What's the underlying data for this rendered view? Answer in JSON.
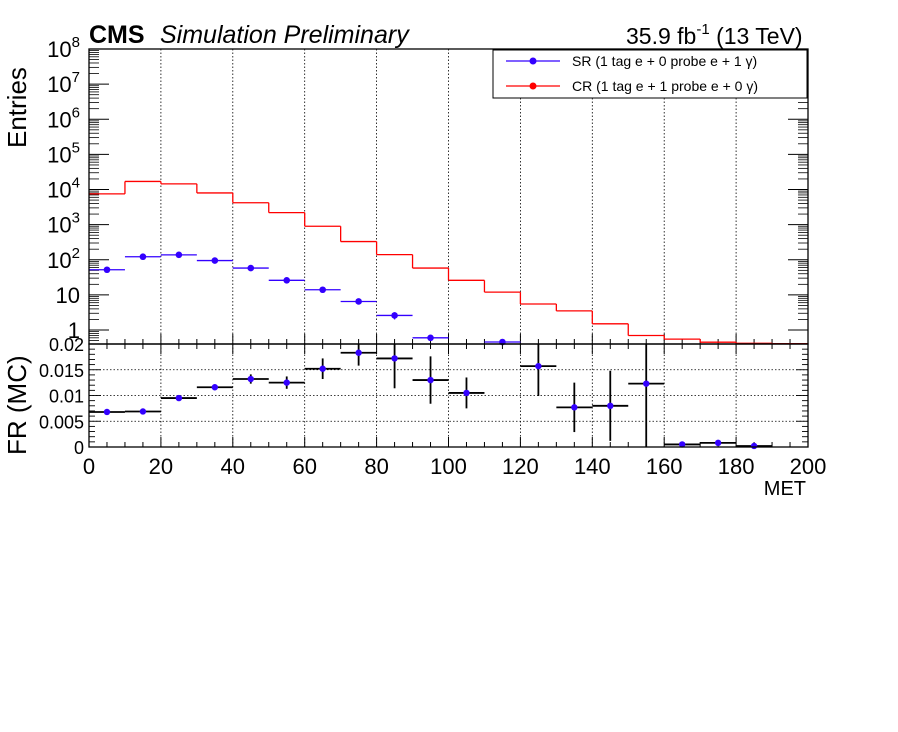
{
  "header": {
    "experiment": "CMS",
    "status": "Simulation Preliminary",
    "lumi": "35.9 fb",
    "lumi_exp": "-1",
    "energy": "(13 TeV)"
  },
  "colors": {
    "sr": "#3300ff",
    "cr": "#ff0000",
    "frame": "#000000",
    "grid": "#000000",
    "ratio_points": "#3300ff",
    "ratio_errors": "#000000"
  },
  "chart_data": [
    {
      "type": "line",
      "title": "",
      "xlabel": "",
      "ylabel": "Entries",
      "xlim": [
        0,
        200
      ],
      "ylim": [
        0.4,
        100000000
      ],
      "log_y": true,
      "grid": true,
      "legend_position": "top-right",
      "y_ticks": [
        "1",
        "10",
        "10",
        "10",
        "10",
        "10",
        "10",
        "10"
      ],
      "y_tick_exps": [
        "",
        "",
        "2",
        "3",
        "4",
        "5",
        "6",
        "7"
      ],
      "y_top_tick": "10",
      "y_top_tick_exp": "8",
      "legend": [
        {
          "label": "SR (1 tag e + 0 probe e + 1 γ)",
          "color": "#3300ff"
        },
        {
          "label": "CR (1 tag e + 1 probe e + 0 γ)",
          "color": "#ff0000"
        }
      ],
      "bin_edges": [
        0,
        10,
        20,
        30,
        40,
        50,
        60,
        70,
        80,
        90,
        100,
        110,
        120,
        130,
        140,
        150,
        160,
        170,
        180,
        190,
        200
      ],
      "series": [
        {
          "name": "SR (1 tag e + 0 probe e + 1 γ)",
          "style": "points",
          "x": [
            5,
            15,
            25,
            35,
            45,
            55,
            65,
            75,
            85,
            95,
            115
          ],
          "values": [
            52,
            122,
            138,
            95,
            58,
            26,
            14,
            6.5,
            2.6,
            0.6,
            0.45
          ],
          "y_err": [
            0,
            0,
            0,
            0,
            0,
            0,
            0,
            0.6,
            0.6,
            0.1,
            0.05
          ]
        },
        {
          "name": "CR (1 tag e + 1 probe e + 0 γ)",
          "style": "step",
          "values": [
            7500,
            17000,
            14500,
            8000,
            4200,
            2200,
            900,
            330,
            140,
            58,
            26,
            12,
            5.5,
            3.5,
            1.5,
            0.7,
            0.55,
            0.45,
            0.42,
            0.41
          ]
        }
      ]
    },
    {
      "type": "scatter",
      "title": "",
      "xlabel": "MET",
      "ylabel": "FR (MC)",
      "xlim": [
        0,
        200
      ],
      "ylim": [
        0,
        0.02
      ],
      "grid": true,
      "x_ticks": [
        "0",
        "20",
        "40",
        "60",
        "80",
        "100",
        "120",
        "140",
        "160",
        "180",
        "200"
      ],
      "y_ticks": [
        "0",
        "0.005",
        "0.01",
        "0.015",
        "0.02"
      ],
      "y_tick_values": [
        0,
        0.005,
        0.01,
        0.015,
        0.02
      ],
      "x": [
        5,
        15,
        25,
        35,
        45,
        55,
        65,
        75,
        85,
        95,
        105,
        125,
        135,
        145,
        155,
        165,
        175,
        185
      ],
      "x_err": [
        5,
        5,
        5,
        5,
        5,
        5,
        5,
        5,
        5,
        5,
        5,
        5,
        5,
        5,
        5,
        5,
        5,
        5
      ],
      "values": [
        0.0068,
        0.0069,
        0.0095,
        0.0116,
        0.0132,
        0.0125,
        0.0152,
        0.0183,
        0.0172,
        0.013,
        0.0105,
        0.0157,
        0.0077,
        0.008,
        0.0123,
        0.0005,
        0.0008,
        0.0002
      ],
      "y_err": [
        0.0002,
        0.0002,
        0.0003,
        0.0005,
        0.0009,
        0.0012,
        0.002,
        0.0025,
        0.0058,
        0.0046,
        0.003,
        0.0058,
        0.0048,
        0.0068,
        0.0125,
        0.0002,
        0.0002,
        0.0001
      ]
    }
  ]
}
